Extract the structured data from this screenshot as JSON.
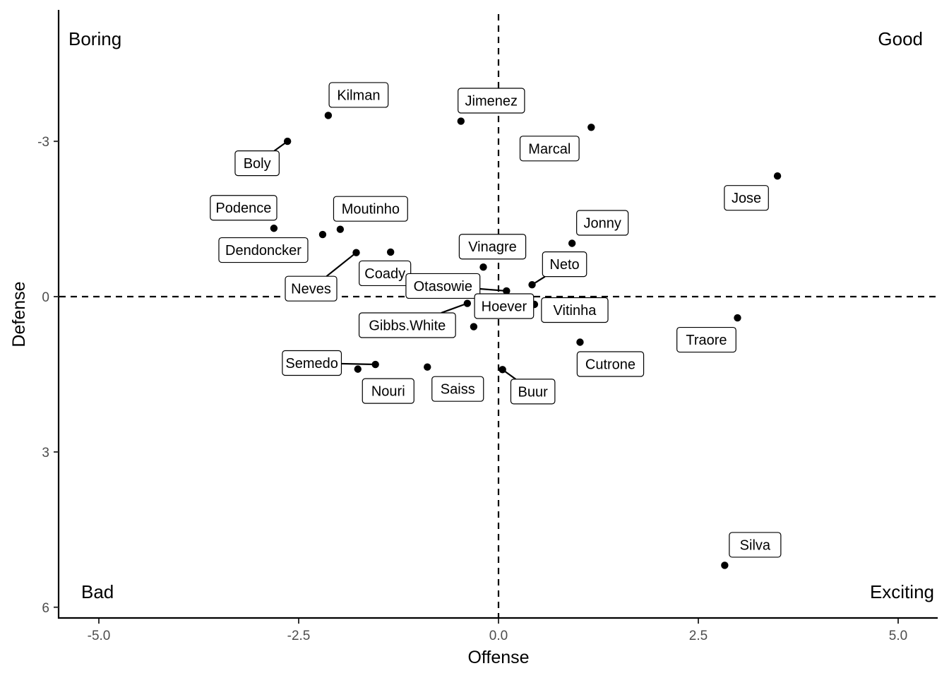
{
  "chart_data": {
    "type": "scatter",
    "title": "",
    "xlabel": "Offense",
    "ylabel": "Defense",
    "xlim": [
      -5.5,
      5.5
    ],
    "ylim": [
      6.2,
      -5.5
    ],
    "y_axis_reversed": true,
    "x_ticks": [
      -5.0,
      -2.5,
      0.0,
      2.5,
      5.0
    ],
    "x_tick_labels": [
      "-5.0",
      "-2.5",
      "0.0",
      "2.5",
      "5.0"
    ],
    "y_ticks": [
      -3,
      0,
      3,
      6
    ],
    "y_tick_labels": [
      "-3",
      "0",
      "3",
      "6"
    ],
    "grid": false,
    "reference_lines": {
      "x": 0,
      "y": 0,
      "style": "dashed"
    },
    "quadrant_labels": {
      "top_left": "Boring",
      "top_right": "Good",
      "bottom_left": "Bad",
      "bottom_right": "Exciting"
    },
    "points": [
      {
        "name": "Kilman",
        "x": -2.13,
        "y": -3.5
      },
      {
        "name": "Jimenez",
        "x": -0.47,
        "y": -3.39
      },
      {
        "name": "Marcal",
        "x": 1.16,
        "y": -3.27
      },
      {
        "name": "Boly",
        "x": -2.64,
        "y": -3.0
      },
      {
        "name": "Jose",
        "x": 3.49,
        "y": -2.33
      },
      {
        "name": "Podence",
        "x": -2.81,
        "y": -1.32
      },
      {
        "name": "Dendoncker",
        "x": -2.2,
        "y": -1.2
      },
      {
        "name": "Moutinho",
        "x": -1.98,
        "y": -1.3
      },
      {
        "name": "Jonny",
        "x": 0.92,
        "y": -1.03
      },
      {
        "name": "Neves",
        "x": -1.78,
        "y": -0.85
      },
      {
        "name": "Coady",
        "x": -1.35,
        "y": -0.86
      },
      {
        "name": "Vinagre",
        "x": -0.19,
        "y": -0.57
      },
      {
        "name": "Neto",
        "x": 0.42,
        "y": -0.23
      },
      {
        "name": "Otasowie",
        "x": 0.1,
        "y": -0.11
      },
      {
        "name": "Vitinha",
        "x": 0.45,
        "y": 0.15
      },
      {
        "name": "Gibbs.White",
        "x": -0.39,
        "y": 0.13
      },
      {
        "name": "Traore",
        "x": 2.99,
        "y": 0.41
      },
      {
        "name": "Hoever",
        "x": -0.31,
        "y": 0.58
      },
      {
        "name": "Cutrone",
        "x": 1.02,
        "y": 0.88
      },
      {
        "name": "Semedo",
        "x": -1.54,
        "y": 1.31
      },
      {
        "name": "Nouri",
        "x": -1.76,
        "y": 1.4
      },
      {
        "name": "Saiss",
        "x": -0.89,
        "y": 1.36
      },
      {
        "name": "Buur",
        "x": 0.05,
        "y": 1.41
      },
      {
        "name": "Silva",
        "x": 2.83,
        "y": 5.19
      }
    ]
  }
}
